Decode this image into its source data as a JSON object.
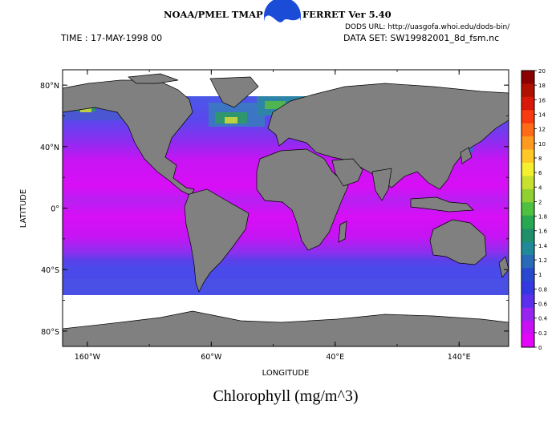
{
  "header": {
    "noaa_text": "NOAA/PMEL TMAP",
    "ferret_text": "FERRET Ver 5.40",
    "dods_url": "DODS URL: http://uasgofa.whoi.edu/dods-bin/",
    "time_text": "TIME : 17-MAY-1998 00",
    "dataset_text": "DATA SET: SW19982001_8d_fsm.nc"
  },
  "axes": {
    "xlabel": "LONGITUDE",
    "ylabel": "LATITUDE",
    "x_ticks": [
      {
        "lon": -160,
        "label": "160°W"
      },
      {
        "lon": -60,
        "label": "60°W"
      },
      {
        "lon": 40,
        "label": "40°E"
      },
      {
        "lon": 140,
        "label": "140°E"
      }
    ],
    "y_ticks": [
      {
        "lat": 80,
        "label": "80°N"
      },
      {
        "lat": 40,
        "label": "40°N"
      },
      {
        "lat": 0,
        "label": "0°"
      },
      {
        "lat": -40,
        "label": "40°S"
      },
      {
        "lat": -80,
        "label": "80°S"
      }
    ],
    "lon_range": [
      -180,
      180
    ],
    "lat_range": [
      -90,
      90
    ]
  },
  "colorbar": {
    "labels": [
      "20",
      "18",
      "16",
      "14",
      "12",
      "10",
      "8",
      "6",
      "4",
      "2",
      "1.8",
      "1.6",
      "1.4",
      "1.2",
      "1",
      "0.8",
      "0.6",
      "0.4",
      "0.2",
      "0"
    ],
    "colors": [
      "#8b0000",
      "#b01000",
      "#d81808",
      "#f83a10",
      "#ff6a18",
      "#ff9a20",
      "#ffc828",
      "#f4f030",
      "#c8e030",
      "#90d030",
      "#50c040",
      "#28a850",
      "#20906a",
      "#208a98",
      "#2a6ab8",
      "#2848d0",
      "#3438e0",
      "#5a30ec",
      "#9824f0",
      "#c810f4",
      "#e406f8"
    ]
  },
  "chart_data": {
    "type": "heatmap",
    "variable": "Chlorophyll",
    "units": "mg/m^3",
    "scale_range": [
      0,
      20
    ],
    "lon_range": [
      -180,
      180
    ],
    "lat_range": [
      -90,
      90
    ]
  },
  "title": "Chlorophyll (mg/m^3)"
}
